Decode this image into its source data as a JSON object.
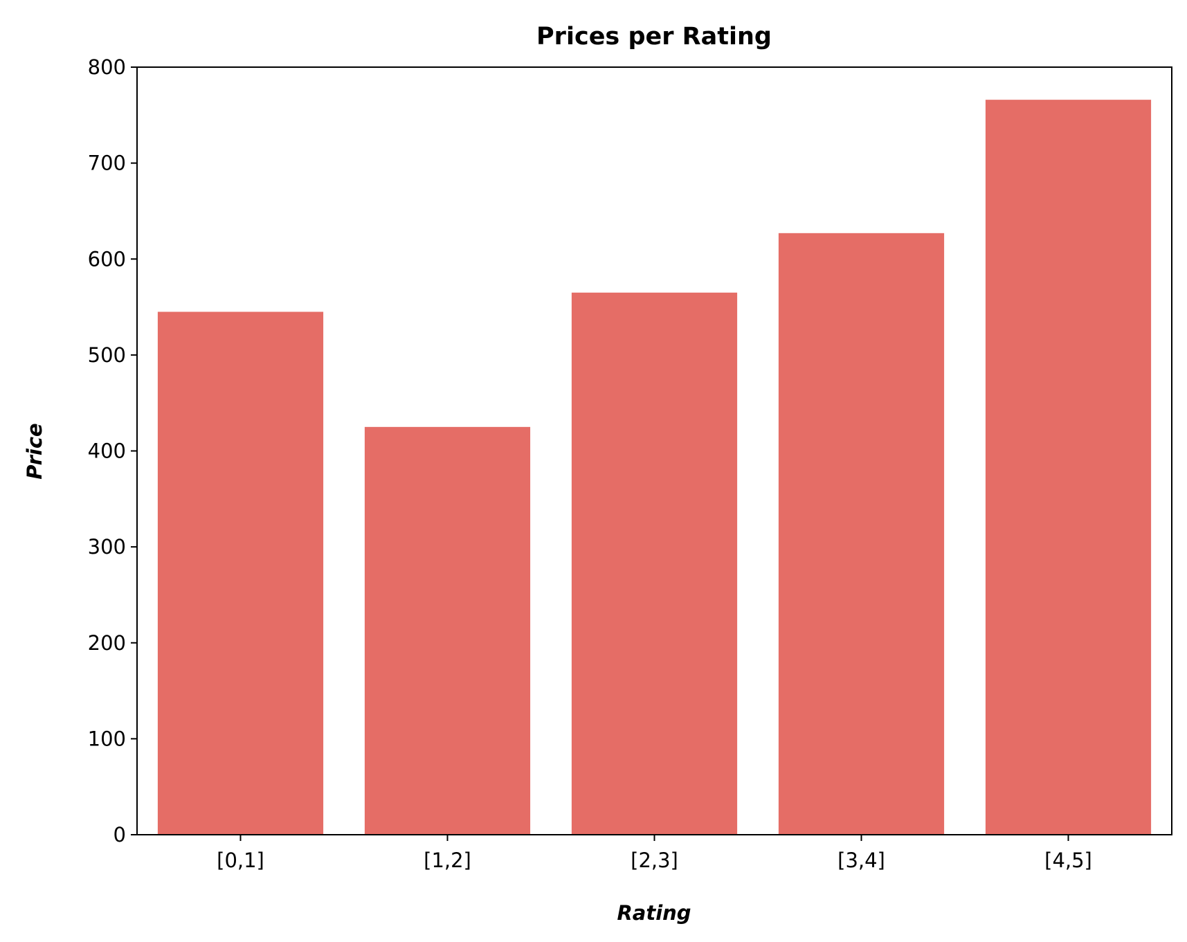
{
  "chart_data": {
    "type": "bar",
    "title": "Prices per Rating",
    "xlabel": "Rating",
    "ylabel": "Price",
    "categories": [
      "[0,1]",
      "[1,2]",
      "[2,3]",
      "[3,4]",
      "[4,5]"
    ],
    "values": [
      545,
      425,
      565,
      627,
      766
    ],
    "ylim": [
      0,
      800
    ],
    "yticks": [
      0,
      100,
      200,
      300,
      400,
      500,
      600,
      700,
      800
    ],
    "grid": false,
    "legend": "none",
    "bar_color": "#e56d66"
  }
}
